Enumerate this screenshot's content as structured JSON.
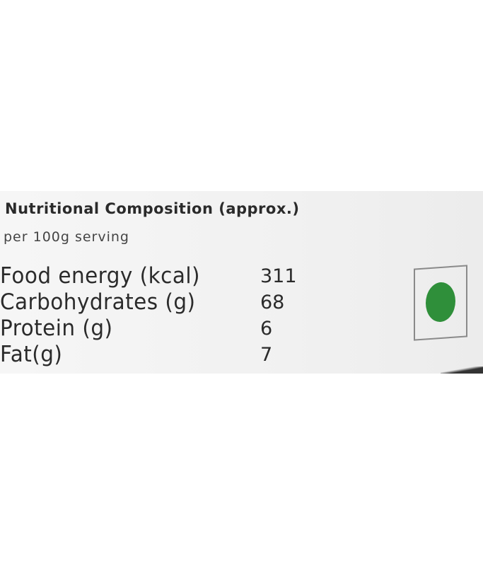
{
  "label": {
    "title": "Nutritional Composition (approx.)",
    "subtitle": "per 100g serving",
    "rows": [
      {
        "name": "Food energy (kcal)",
        "value": "311"
      },
      {
        "name": "Carbohydrates (g)",
        "value": "68"
      },
      {
        "name": "Protein (g)",
        "value": "6"
      },
      {
        "name": "Fat(g)",
        "value": "7"
      }
    ],
    "veg_mark_color": "#2f8f3a"
  }
}
